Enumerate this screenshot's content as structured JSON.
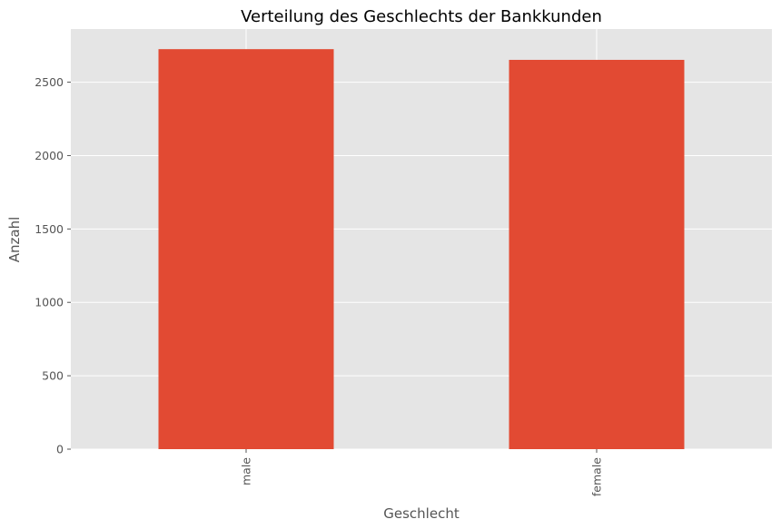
{
  "chart_data": {
    "type": "bar",
    "title": "Verteilung des Geschlechts der Bankkunden",
    "xlabel": "Geschlecht",
    "ylabel": "Anzahl",
    "categories": [
      "male",
      "female"
    ],
    "values": [
      2725,
      2652
    ],
    "ylim": [
      0,
      2862
    ],
    "yticks": [
      0,
      500,
      1000,
      1500,
      2000,
      2500
    ],
    "ytick_labels": [
      "0",
      "500",
      "1000",
      "1500",
      "2000",
      "2500"
    ],
    "grid": true,
    "colors": {
      "bar": "#E24A33",
      "plot_background": "#E5E5E5",
      "grid": "#FFFFFF",
      "tick_text": "#555555",
      "title_text": "#000000"
    }
  }
}
